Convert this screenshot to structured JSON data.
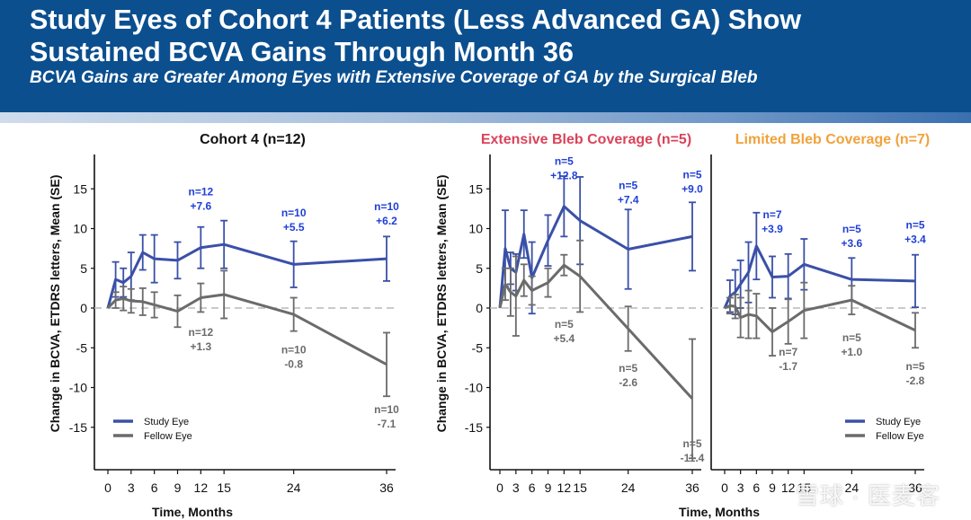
{
  "header": {
    "title_line1": "Study Eyes of Cohort 4 Patients (Less Advanced GA) Show",
    "title_line2": "Sustained BCVA Gains Through Month 36",
    "subtitle": "BCVA Gains are Greater Among Eyes with Extensive Coverage of GA by the Surgical Bleb"
  },
  "watermark": "雪球 · 医麦客",
  "colors": {
    "study": "#3a50a8",
    "fellow": "#6b6b6b",
    "extensive": "#d9435a",
    "limited": "#f0a23c",
    "header_bg": "#0b4f8f"
  },
  "chart_data": [
    {
      "type": "line",
      "title": "Cohort 4 (n=12)",
      "xlabel": "Time, Months",
      "ylabel": "Change in BCVA, ETDRS letters, Mean (SE)",
      "xlim": [
        -1,
        37
      ],
      "ylim": [
        -20,
        19
      ],
      "xticks": [
        0,
        3,
        6,
        9,
        12,
        15,
        24,
        36
      ],
      "yticks": [
        -15,
        -10,
        -5,
        0,
        5,
        10,
        15
      ],
      "legend": "bottom-left",
      "legend_entries": [
        "Study Eye",
        "Fellow Eye"
      ],
      "series": [
        {
          "name": "Study Eye",
          "color": "#3a50a8",
          "x": [
            0,
            1,
            2,
            3,
            4.5,
            6,
            9,
            12,
            15,
            24,
            36
          ],
          "y": [
            0,
            3.6,
            3.2,
            4.0,
            7.0,
            6.2,
            6.0,
            7.6,
            8.0,
            5.5,
            6.2
          ],
          "se": [
            0,
            2.2,
            1.8,
            3.0,
            2.2,
            3.0,
            2.3,
            2.6,
            3.0,
            2.9,
            2.8
          ]
        },
        {
          "name": "Fellow Eye",
          "color": "#6b6b6b",
          "x": [
            0,
            1,
            2,
            3,
            4.5,
            6,
            9,
            12,
            15,
            24,
            36
          ],
          "y": [
            0,
            1.0,
            1.2,
            0.9,
            0.8,
            0.4,
            -0.4,
            1.3,
            1.7,
            -0.8,
            -7.1
          ],
          "se": [
            0,
            1.0,
            1.5,
            1.5,
            1.7,
            1.6,
            2.0,
            1.8,
            3.0,
            2.1,
            4.0
          ]
        }
      ],
      "annotations": [
        {
          "x": 12,
          "y": 14.2,
          "text": [
            "n=12",
            "+7.6"
          ],
          "series": "Study Eye"
        },
        {
          "x": 24,
          "y": 11.5,
          "text": [
            "n=10",
            "+5.5"
          ],
          "series": "Study Eye"
        },
        {
          "x": 36,
          "y": 12.3,
          "text": [
            "n=10",
            "+6.2"
          ],
          "series": "Study Eye"
        },
        {
          "x": 12,
          "y": -3.5,
          "text": [
            "n=12",
            "+1.3"
          ],
          "series": "Fellow Eye"
        },
        {
          "x": 24,
          "y": -5.7,
          "text": [
            "n=10",
            "-0.8"
          ],
          "series": "Fellow Eye"
        },
        {
          "x": 36,
          "y": -13.2,
          "text": [
            "n=10",
            "-7.1"
          ],
          "series": "Fellow Eye"
        }
      ]
    },
    {
      "type": "line",
      "title": "Extensive Bleb Coverage (n=5)",
      "xlabel": "Time, Months",
      "ylabel": "Change in BCVA, ETDRS letters, Mean (SE)",
      "xlim": [
        -1,
        37
      ],
      "ylim": [
        -20,
        19
      ],
      "xticks": [
        0,
        3,
        6,
        9,
        12,
        15,
        24,
        36
      ],
      "yticks": [
        -15,
        -10,
        -5,
        0,
        5,
        10,
        15
      ],
      "series": [
        {
          "name": "Study Eye",
          "color": "#3a50a8",
          "x": [
            0,
            1,
            2,
            3,
            4.5,
            6,
            9,
            12,
            15,
            24,
            36
          ],
          "y": [
            0,
            7.5,
            5.0,
            4.5,
            9.3,
            3.8,
            8.5,
            12.8,
            11.0,
            7.4,
            9.0
          ],
          "se": [
            0,
            4.8,
            2.0,
            2.3,
            3.0,
            4.5,
            3.2,
            3.8,
            5.5,
            5.0,
            4.3
          ]
        },
        {
          "name": "Fellow Eye",
          "color": "#6b6b6b",
          "x": [
            0,
            1,
            2,
            3,
            4.5,
            6,
            9,
            12,
            15,
            24,
            36
          ],
          "y": [
            0,
            3.0,
            2.0,
            1.5,
            3.5,
            2.2,
            3.2,
            5.4,
            4.0,
            -2.6,
            -11.4
          ],
          "se": [
            0,
            2.0,
            3.0,
            5.0,
            2.0,
            1.8,
            1.8,
            1.3,
            4.5,
            2.8,
            7.5
          ]
        }
      ],
      "annotations": [
        {
          "x": 12,
          "y": 18.0,
          "text": [
            "n=5",
            "+12.8"
          ],
          "series": "Study Eye"
        },
        {
          "x": 24,
          "y": 15.0,
          "text": [
            "n=5",
            "+7.4"
          ],
          "series": "Study Eye"
        },
        {
          "x": 36,
          "y": 16.3,
          "text": [
            "n=5",
            "+9.0"
          ],
          "series": "Study Eye"
        },
        {
          "x": 12,
          "y": -2.5,
          "text": [
            "n=5",
            "+5.4"
          ],
          "series": "Fellow Eye"
        },
        {
          "x": 24,
          "y": -8.0,
          "text": [
            "n=5",
            "-2.6"
          ],
          "series": "Fellow Eye"
        },
        {
          "x": 36,
          "y": -17.5,
          "text": [
            "n=5",
            "-11.4"
          ],
          "series": "Fellow Eye"
        }
      ]
    },
    {
      "type": "line",
      "title": "Limited Bleb Coverage (n=7)",
      "xlabel": "",
      "ylabel": "",
      "xlim": [
        -1,
        37
      ],
      "ylim": [
        -20,
        19
      ],
      "xticks": [
        0,
        3,
        6,
        9,
        12,
        15,
        24,
        36
      ],
      "yticks": [],
      "legend": "bottom-right",
      "legend_entries": [
        "Study Eye",
        "Fellow Eye"
      ],
      "series": [
        {
          "name": "Study Eye",
          "color": "#3a50a8",
          "x": [
            0,
            1,
            2,
            3,
            4.5,
            6,
            9,
            12,
            15,
            24,
            36
          ],
          "y": [
            0,
            1.5,
            2.0,
            3.0,
            4.5,
            7.8,
            3.9,
            4.0,
            5.5,
            3.6,
            3.4
          ],
          "se": [
            0,
            2.0,
            2.8,
            3.0,
            3.8,
            4.2,
            2.6,
            2.8,
            3.2,
            2.7,
            3.3
          ]
        },
        {
          "name": "Fellow Eye",
          "color": "#6b6b6b",
          "x": [
            0,
            1,
            2,
            3,
            4.5,
            6,
            9,
            12,
            15,
            24,
            36
          ],
          "y": [
            0,
            0.3,
            0.2,
            -1.2,
            -0.8,
            -1.0,
            -3.0,
            -1.7,
            -0.3,
            1.0,
            -2.8
          ],
          "se": [
            0,
            1.0,
            1.5,
            2.5,
            3.0,
            2.8,
            3.0,
            2.8,
            3.5,
            1.8,
            2.2
          ]
        }
      ],
      "annotations": [
        {
          "x": 9,
          "y": 11.3,
          "text": [
            "n=7",
            "+3.9"
          ],
          "series": "Study Eye"
        },
        {
          "x": 24,
          "y": 9.5,
          "text": [
            "n=5",
            "+3.6"
          ],
          "series": "Study Eye"
        },
        {
          "x": 36,
          "y": 10.0,
          "text": [
            "n=5",
            "+3.4"
          ],
          "series": "Study Eye"
        },
        {
          "x": 12,
          "y": -6.0,
          "text": [
            "n=7",
            "-1.7"
          ],
          "series": "Fellow Eye"
        },
        {
          "x": 24,
          "y": -4.2,
          "text": [
            "n=5",
            "+1.0"
          ],
          "series": "Fellow Eye"
        },
        {
          "x": 36,
          "y": -7.8,
          "text": [
            "n=5",
            "-2.8"
          ],
          "series": "Fellow Eye"
        }
      ]
    }
  ]
}
